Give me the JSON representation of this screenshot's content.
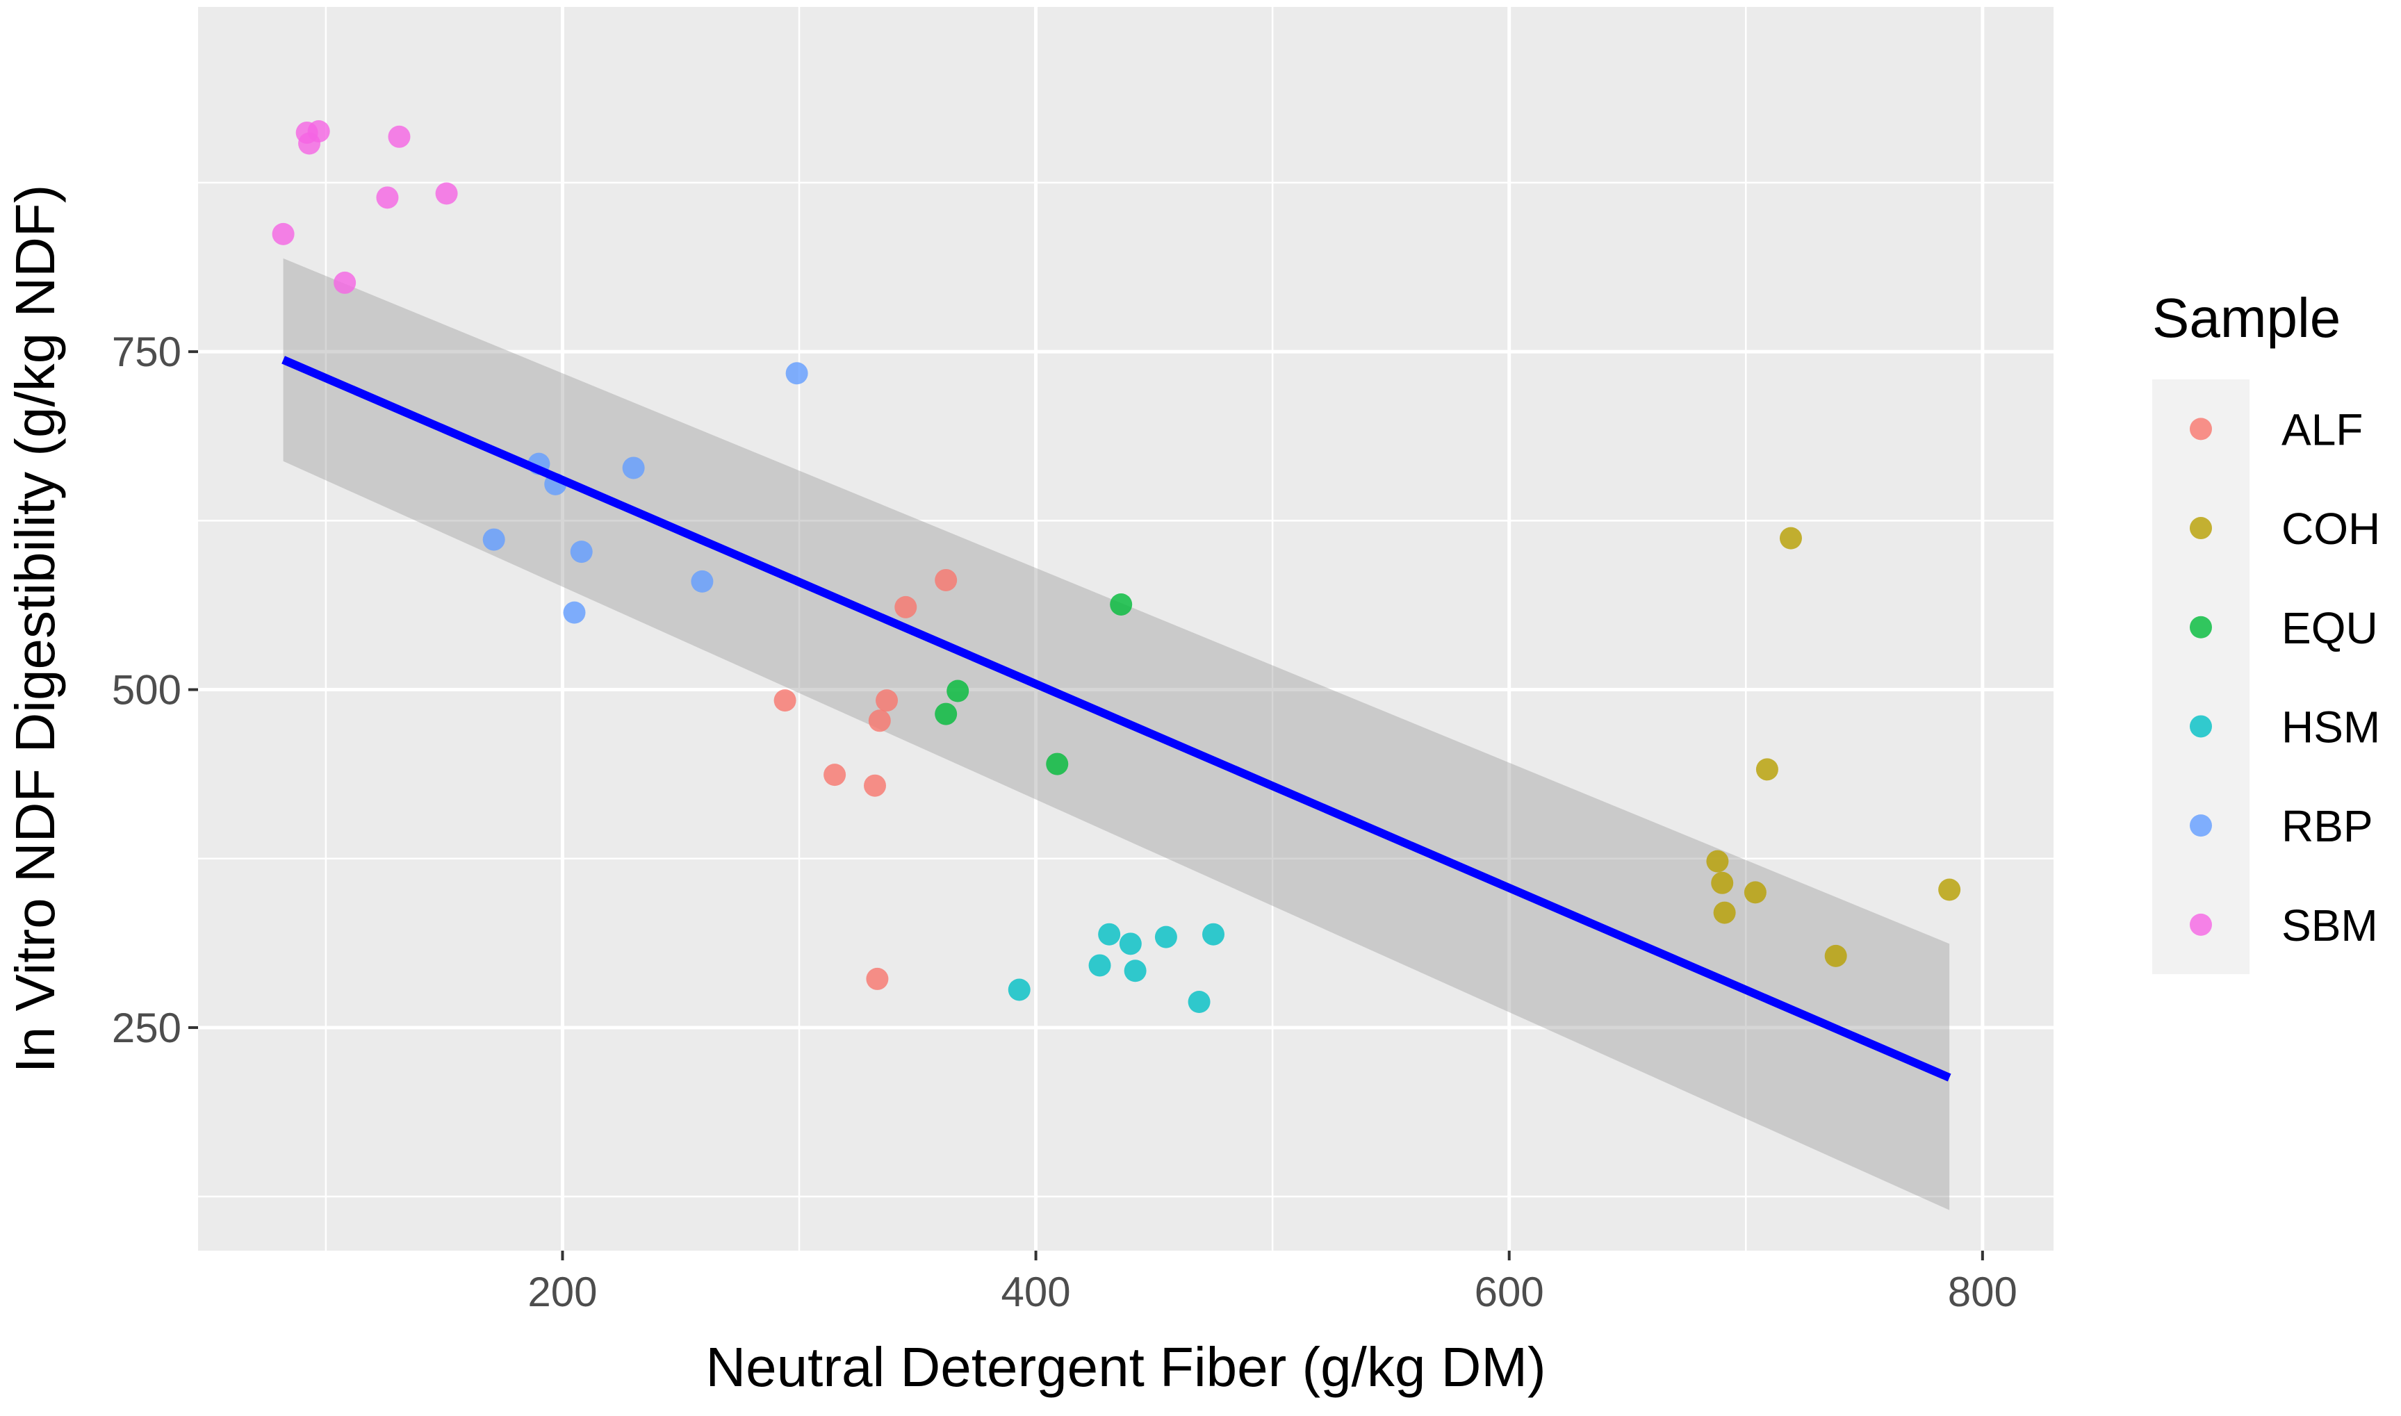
{
  "chart_data": {
    "type": "scatter",
    "xlabel": "Neutral Detergent Fiber (g/kg DM)",
    "ylabel": "In Vitro NDF Digestibility (g/kg NDF)",
    "xlim": [
      46,
      830
    ],
    "ylim": [
      85,
      1005
    ],
    "x_ticks": [
      200,
      400,
      600,
      800
    ],
    "y_ticks": [
      250,
      500,
      750
    ],
    "grid": true,
    "legend": {
      "title": "Sample",
      "position": "right"
    },
    "series": [
      {
        "name": "ALF",
        "color": "#F8766D",
        "points": [
          [
            294,
            492
          ],
          [
            315,
            437
          ],
          [
            332,
            429
          ],
          [
            334,
            477
          ],
          [
            337,
            492
          ],
          [
            345,
            561
          ],
          [
            362,
            581
          ],
          [
            333,
            286
          ]
        ]
      },
      {
        "name": "COH",
        "color": "#B79F00",
        "points": [
          [
            688,
            373
          ],
          [
            690,
            357
          ],
          [
            691,
            335
          ],
          [
            704,
            350
          ],
          [
            709,
            441
          ],
          [
            719,
            612
          ],
          [
            738,
            303
          ],
          [
            786,
            352
          ]
        ]
      },
      {
        "name": "EQU",
        "color": "#00BA38",
        "points": [
          [
            362,
            482
          ],
          [
            367,
            499
          ],
          [
            409,
            445
          ],
          [
            436,
            563
          ]
        ]
      },
      {
        "name": "HSM",
        "color": "#00BFC4",
        "points": [
          [
            393,
            278
          ],
          [
            427,
            296
          ],
          [
            431,
            319
          ],
          [
            440,
            312
          ],
          [
            442,
            292
          ],
          [
            455,
            317
          ],
          [
            469,
            269
          ],
          [
            475,
            319
          ]
        ]
      },
      {
        "name": "RBP",
        "color": "#619CFF",
        "points": [
          [
            171,
            611
          ],
          [
            190,
            667
          ],
          [
            197,
            652
          ],
          [
            205,
            557
          ],
          [
            208,
            602
          ],
          [
            230,
            664
          ],
          [
            259,
            580
          ],
          [
            299,
            734
          ]
        ]
      },
      {
        "name": "SBM",
        "color": "#F564E3",
        "points": [
          [
            82,
            837
          ],
          [
            92,
            912
          ],
          [
            93,
            904
          ],
          [
            97,
            913
          ],
          [
            108,
            801
          ],
          [
            131,
            909
          ],
          [
            126,
            864
          ],
          [
            151,
            867
          ]
        ]
      }
    ],
    "regression": {
      "color": "#0000FF",
      "x": [
        82,
        786
      ],
      "y": [
        744,
        213
      ],
      "ci_lower": [
        669,
        115
      ],
      "ci_upper": [
        819,
        312
      ]
    }
  }
}
